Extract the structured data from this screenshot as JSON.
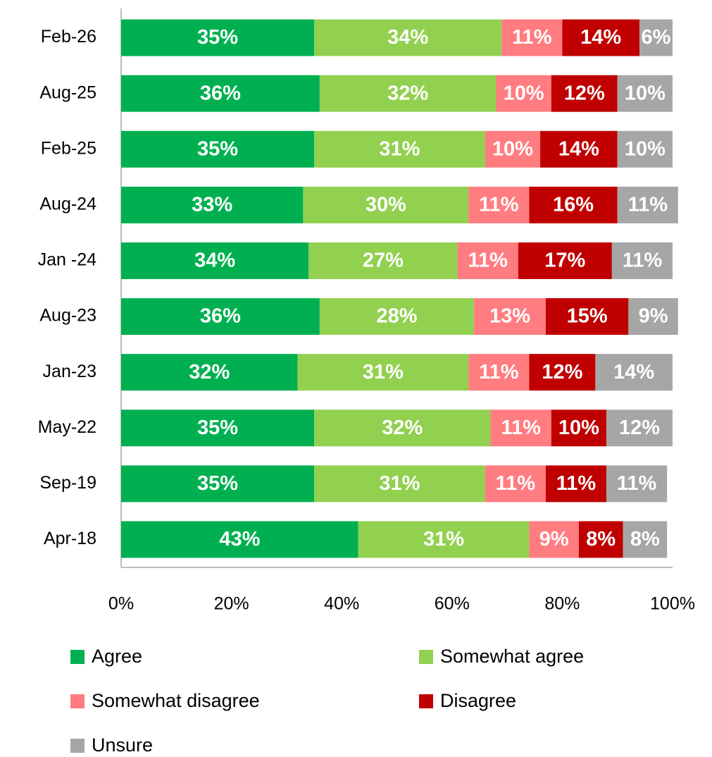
{
  "chart_data": {
    "type": "stacked_barh",
    "categories": [
      "Feb-26",
      "Aug-25",
      "Feb-25",
      "Aug-24",
      "Jan -24",
      "Aug-23",
      "Jan-23",
      "May-22",
      "Sep-19",
      "Apr-18"
    ],
    "series": [
      {
        "name": "Agree",
        "color": "#00b050",
        "values": [
          35,
          36,
          35,
          33,
          34,
          36,
          32,
          35,
          35,
          43
        ],
        "value_labels": [
          "35%",
          "36%",
          "35%",
          "33%",
          "34%",
          "36%",
          "32%",
          "35%",
          "35%",
          "43%"
        ]
      },
      {
        "name": "Somewhat agree",
        "color": "#92d050",
        "values": [
          34,
          32,
          31,
          30,
          27,
          28,
          31,
          32,
          31,
          31
        ],
        "value_labels": [
          "34%",
          "32%",
          "31%",
          "30%",
          "27%",
          "28%",
          "31%",
          "32%",
          "31%",
          "31%"
        ]
      },
      {
        "name": "Somewhat disagree",
        "color": "#ff7c80",
        "values": [
          11,
          10,
          10,
          11,
          11,
          13,
          11,
          11,
          11,
          9
        ],
        "value_labels": [
          "11%",
          "10%",
          "10%",
          "11%",
          "11%",
          "13%",
          "11%",
          "11%",
          "11%",
          "9%"
        ]
      },
      {
        "name": "Disagree",
        "color": "#c00000",
        "values": [
          14,
          12,
          14,
          16,
          17,
          15,
          12,
          10,
          11,
          8
        ],
        "value_labels": [
          "14%",
          "12%",
          "14%",
          "16%",
          "17%",
          "15%",
          "12%",
          "10%",
          "11%",
          "8%"
        ]
      },
      {
        "name": "Unsure",
        "color": "#a6a6a6",
        "values": [
          6,
          10,
          10,
          11,
          11,
          9,
          14,
          12,
          11,
          8
        ],
        "value_labels": [
          "6%",
          "10%",
          "10%",
          "11%",
          "11%",
          "9%",
          "14%",
          "12%",
          "11%",
          "8%"
        ]
      }
    ],
    "xlim": [
      0,
      100
    ],
    "xticks": [
      {
        "value": 0,
        "label": "0%"
      },
      {
        "value": 20,
        "label": "20%"
      },
      {
        "value": 40,
        "label": "40%"
      },
      {
        "value": 60,
        "label": "60%"
      },
      {
        "value": 80,
        "label": "80%"
      },
      {
        "value": 100,
        "label": "100%"
      }
    ],
    "grid": false,
    "legend": "bottom"
  }
}
